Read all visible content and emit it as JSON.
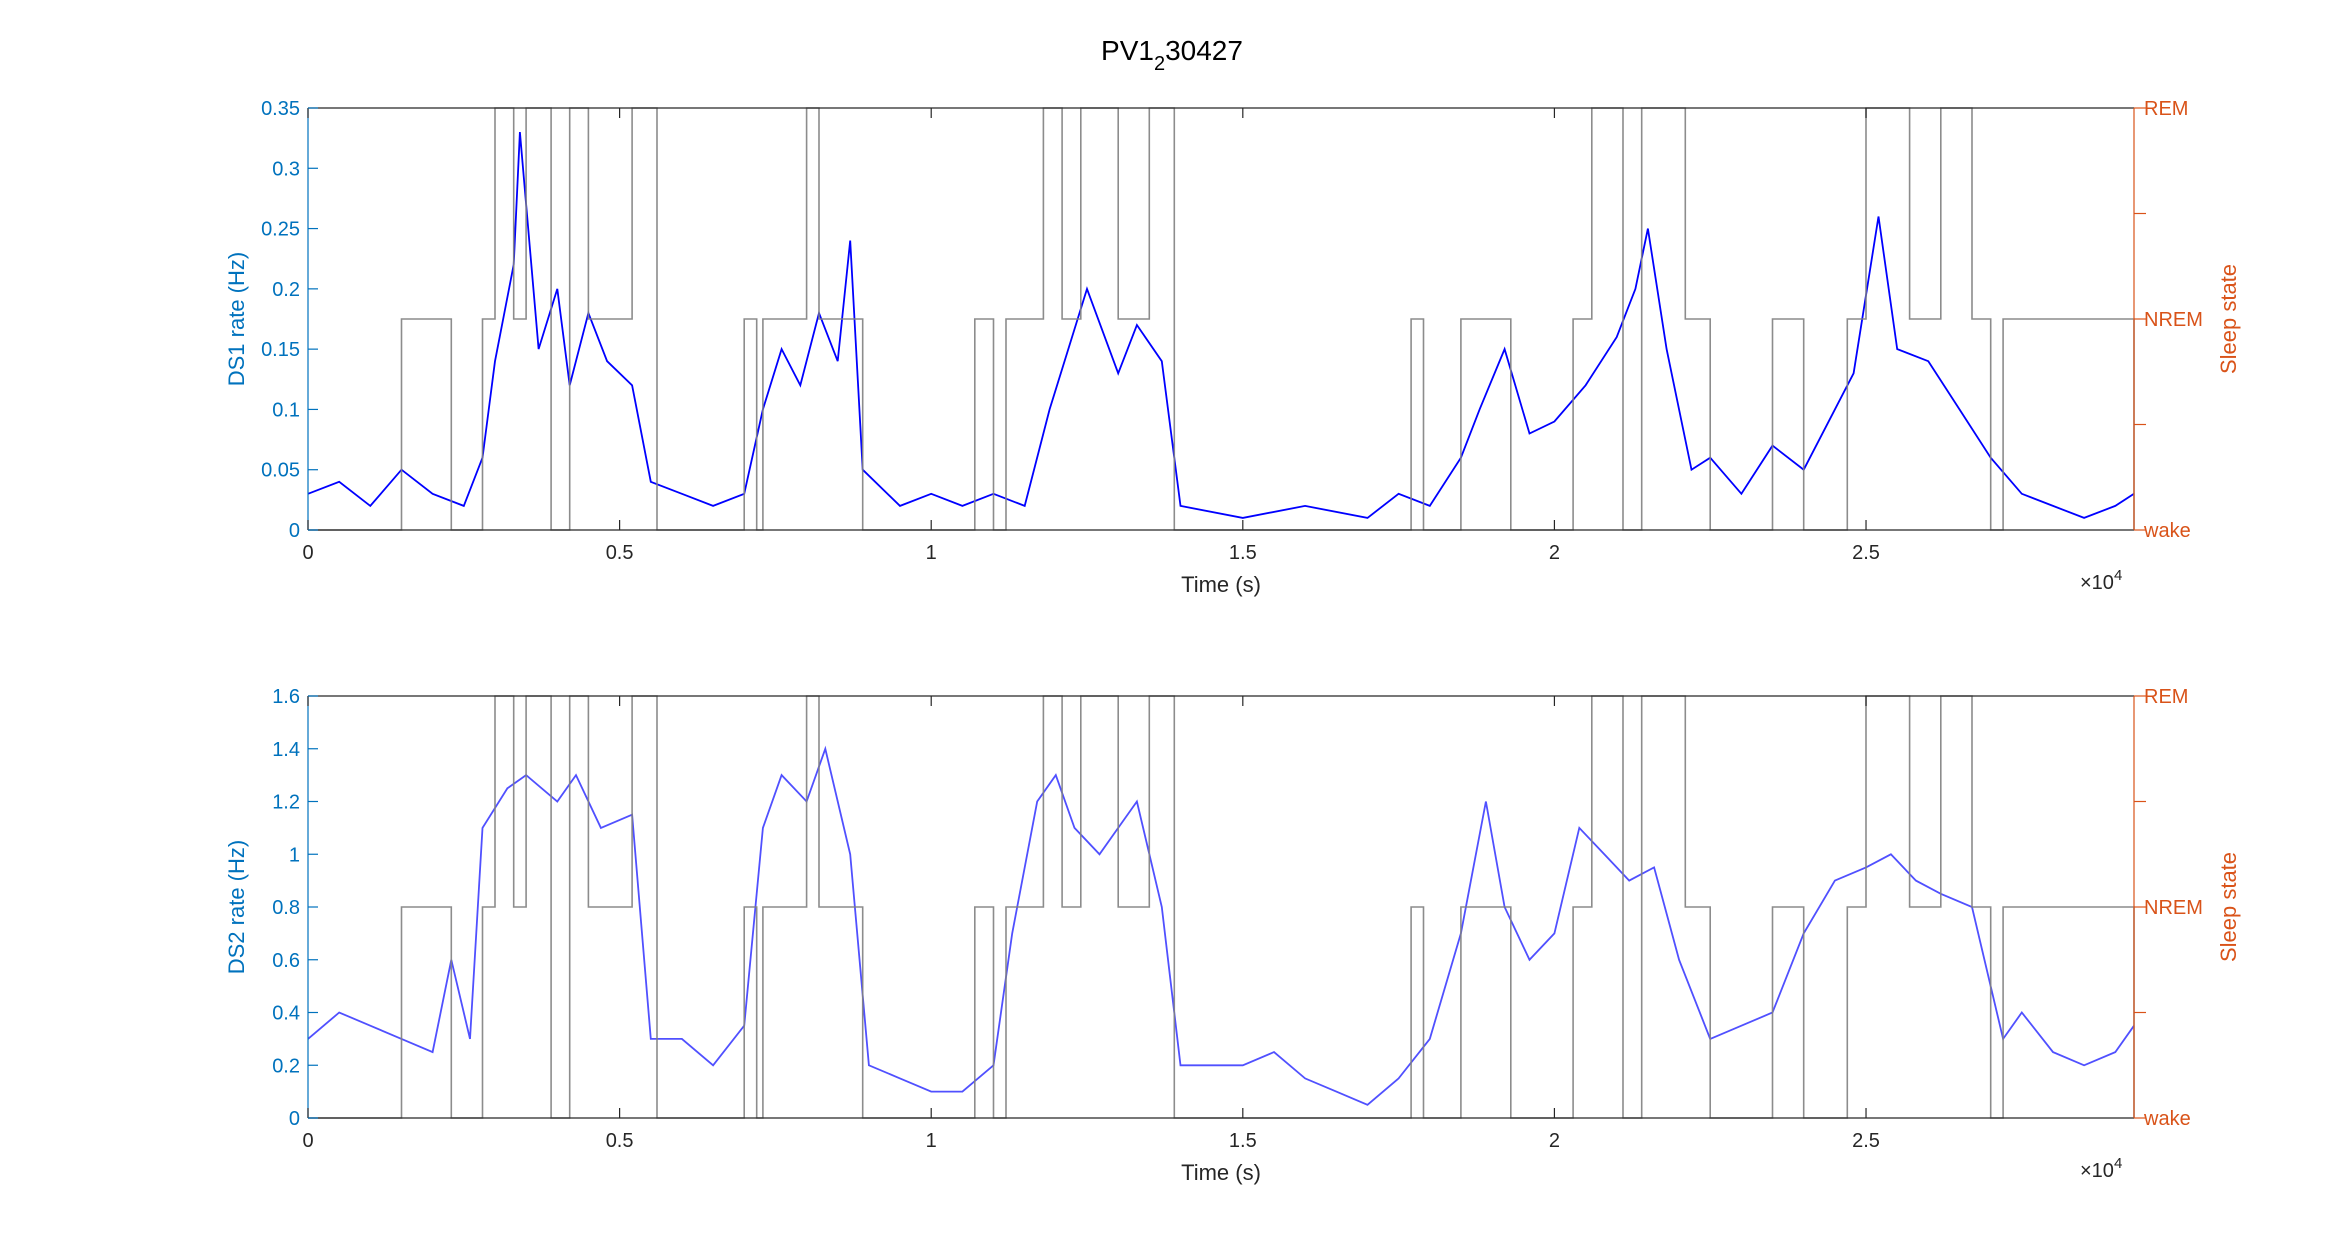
{
  "figure": {
    "title_base": "PV1",
    "title_sub": "2",
    "title_rest": "30427"
  },
  "colors": {
    "left_axis": "#0072BD",
    "right_axis": "#D95319",
    "ds1_line": "#0000FF",
    "ds2_line": "#5050FF",
    "state_line": "#808080",
    "axis_black": "#262626"
  },
  "chart_data": [
    {
      "type": "line",
      "title": "PV1_230427",
      "xlabel": "Time (s)",
      "ylabel": "DS1 rate (Hz)",
      "y2label": "Sleep state",
      "x_exponent_base": "×10",
      "x_exponent": "4",
      "xlim": [
        0,
        29300
      ],
      "ylim": [
        0,
        0.35
      ],
      "xticks": [
        0,
        5000,
        10000,
        15000,
        20000,
        25000
      ],
      "xtick_labels": [
        "0",
        "0.5",
        "1",
        "1.5",
        "2",
        "2.5"
      ],
      "yticks": [
        0,
        0.05,
        0.1,
        0.15,
        0.2,
        0.25,
        0.3,
        0.35
      ],
      "ytick_labels": [
        "0",
        "0.05",
        "0.1",
        "0.15",
        "0.2",
        "0.25",
        "0.3",
        "0.35"
      ],
      "y2ticks": [
        0,
        0.5,
        1,
        1.5,
        2
      ],
      "y2tick_labels": [
        "wake",
        "",
        "NREM",
        "",
        "REM"
      ],
      "series": [
        {
          "role": "rate",
          "x": [
            0,
            500,
            1000,
            1500,
            2000,
            2500,
            2800,
            3000,
            3300,
            3400,
            3700,
            4000,
            4200,
            4500,
            4800,
            5200,
            5500,
            6000,
            6500,
            7000,
            7300,
            7600,
            7900,
            8200,
            8500,
            8700,
            8900,
            9500,
            10000,
            10500,
            11000,
            11500,
            11900,
            12200,
            12500,
            13000,
            13300,
            13700,
            14000,
            15000,
            16000,
            17000,
            17500,
            18000,
            18500,
            18800,
            19200,
            19600,
            20000,
            20500,
            21000,
            21300,
            21500,
            21800,
            22200,
            22500,
            23000,
            23500,
            24000,
            24500,
            24800,
            25200,
            25500,
            26000,
            26500,
            27000,
            27500,
            28000,
            28500,
            29000,
            29300
          ],
          "y": [
            0.03,
            0.04,
            0.02,
            0.05,
            0.03,
            0.02,
            0.06,
            0.14,
            0.22,
            0.33,
            0.15,
            0.2,
            0.12,
            0.18,
            0.14,
            0.12,
            0.04,
            0.03,
            0.02,
            0.03,
            0.1,
            0.15,
            0.12,
            0.18,
            0.14,
            0.24,
            0.05,
            0.02,
            0.03,
            0.02,
            0.03,
            0.02,
            0.1,
            0.15,
            0.2,
            0.13,
            0.17,
            0.14,
            0.02,
            0.01,
            0.02,
            0.01,
            0.03,
            0.02,
            0.06,
            0.1,
            0.15,
            0.08,
            0.09,
            0.12,
            0.16,
            0.2,
            0.25,
            0.15,
            0.05,
            0.06,
            0.03,
            0.07,
            0.05,
            0.1,
            0.13,
            0.26,
            0.15,
            0.14,
            0.1,
            0.06,
            0.03,
            0.02,
            0.01,
            0.02,
            0.03
          ]
        },
        {
          "role": "sleep_state",
          "x": [
            0,
            1500,
            2300,
            2800,
            3000,
            3300,
            3500,
            3900,
            4200,
            4500,
            5200,
            5600,
            7000,
            7200,
            7300,
            8000,
            8200,
            8900,
            10700,
            11000,
            11200,
            11800,
            12100,
            12400,
            13000,
            13500,
            13900,
            17700,
            17900,
            18500,
            19300,
            20300,
            20600,
            21100,
            21400,
            22100,
            22500,
            23500,
            24000,
            24700,
            25000,
            25700,
            26200,
            26700,
            27000,
            27200,
            29300
          ],
          "y": [
            0,
            1,
            0,
            1,
            2,
            1,
            2,
            0,
            2,
            1,
            2,
            0,
            1,
            0,
            1,
            2,
            1,
            0,
            1,
            0,
            1,
            2,
            1,
            2,
            1,
            2,
            0,
            1,
            0,
            1,
            0,
            1,
            2,
            0,
            2,
            1,
            0,
            1,
            0,
            1,
            2,
            1,
            2,
            1,
            0,
            1,
            0
          ]
        }
      ]
    },
    {
      "type": "line",
      "xlabel": "Time (s)",
      "ylabel": "DS2 rate (Hz)",
      "y2label": "Sleep state",
      "x_exponent_base": "×10",
      "x_exponent": "4",
      "xlim": [
        0,
        29300
      ],
      "ylim": [
        0,
        1.6
      ],
      "xticks": [
        0,
        5000,
        10000,
        15000,
        20000,
        25000
      ],
      "xtick_labels": [
        "0",
        "0.5",
        "1",
        "1.5",
        "2",
        "2.5"
      ],
      "yticks": [
        0,
        0.2,
        0.4,
        0.6,
        0.8,
        1,
        1.2,
        1.4,
        1.6
      ],
      "ytick_labels": [
        "0",
        "0.2",
        "0.4",
        "0.6",
        "0.8",
        "1",
        "1.2",
        "1.4",
        "1.6"
      ],
      "y2ticks": [
        0,
        0.5,
        1,
        1.5,
        2
      ],
      "y2tick_labels": [
        "wake",
        "",
        "NREM",
        "",
        "REM"
      ],
      "series": [
        {
          "role": "rate",
          "x": [
            0,
            500,
            1000,
            1500,
            2000,
            2300,
            2600,
            2800,
            3200,
            3500,
            4000,
            4300,
            4700,
            5200,
            5500,
            6000,
            6500,
            7000,
            7300,
            7600,
            8000,
            8300,
            8700,
            9000,
            9500,
            10000,
            10500,
            11000,
            11300,
            11700,
            12000,
            12300,
            12700,
            13000,
            13300,
            13700,
            14000,
            15000,
            15500,
            16000,
            16500,
            17000,
            17500,
            18000,
            18500,
            18900,
            19200,
            19600,
            20000,
            20400,
            20800,
            21200,
            21600,
            22000,
            22500,
            23000,
            23500,
            24000,
            24500,
            25000,
            25400,
            25800,
            26200,
            26700,
            27200,
            27500,
            28000,
            28500,
            29000,
            29300
          ],
          "y": [
            0.3,
            0.4,
            0.35,
            0.3,
            0.25,
            0.6,
            0.3,
            1.1,
            1.25,
            1.3,
            1.2,
            1.3,
            1.1,
            1.15,
            0.3,
            0.3,
            0.2,
            0.35,
            1.1,
            1.3,
            1.2,
            1.4,
            1.0,
            0.2,
            0.15,
            0.1,
            0.1,
            0.2,
            0.7,
            1.2,
            1.3,
            1.1,
            1.0,
            1.1,
            1.2,
            0.8,
            0.2,
            0.2,
            0.25,
            0.15,
            0.1,
            0.05,
            0.15,
            0.3,
            0.7,
            1.2,
            0.8,
            0.6,
            0.7,
            1.1,
            1.0,
            0.9,
            0.95,
            0.6,
            0.3,
            0.35,
            0.4,
            0.7,
            0.9,
            0.95,
            1.0,
            0.9,
            0.85,
            0.8,
            0.3,
            0.4,
            0.25,
            0.2,
            0.25,
            0.35
          ]
        },
        {
          "role": "sleep_state",
          "x": [
            0,
            1500,
            2300,
            2800,
            3000,
            3300,
            3500,
            3900,
            4200,
            4500,
            5200,
            5600,
            7000,
            7200,
            7300,
            8000,
            8200,
            8900,
            10700,
            11000,
            11200,
            11800,
            12100,
            12400,
            13000,
            13500,
            13900,
            17700,
            17900,
            18500,
            19300,
            20300,
            20600,
            21100,
            21400,
            22100,
            22500,
            23500,
            24000,
            24700,
            25000,
            25700,
            26200,
            26700,
            27000,
            27200,
            29300
          ],
          "y": [
            0,
            1,
            0,
            1,
            2,
            1,
            2,
            0,
            2,
            1,
            2,
            0,
            1,
            0,
            1,
            2,
            1,
            0,
            1,
            0,
            1,
            2,
            1,
            2,
            1,
            2,
            0,
            1,
            0,
            1,
            0,
            1,
            2,
            0,
            2,
            1,
            0,
            1,
            0,
            1,
            2,
            1,
            2,
            1,
            0,
            1,
            0
          ]
        }
      ]
    }
  ]
}
